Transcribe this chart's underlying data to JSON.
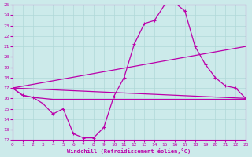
{
  "xlabel": "Windchill (Refroidissement éolien,°C)",
  "xlim": [
    0,
    23
  ],
  "ylim": [
    12,
    25
  ],
  "xticks": [
    0,
    1,
    2,
    3,
    4,
    5,
    6,
    7,
    8,
    9,
    10,
    11,
    12,
    13,
    14,
    15,
    16,
    17,
    18,
    19,
    20,
    21,
    22,
    23
  ],
  "yticks": [
    12,
    13,
    14,
    15,
    16,
    17,
    18,
    19,
    20,
    21,
    22,
    23,
    24,
    25
  ],
  "background_color": "#cceaea",
  "grid_color": "#b0d8d8",
  "line_color": "#bb00aa",
  "line1_x": [
    0,
    1,
    2,
    3,
    4,
    5,
    6,
    7,
    8,
    9,
    10,
    11,
    12,
    13,
    14,
    15,
    16,
    17,
    18,
    19,
    20,
    21,
    22,
    23
  ],
  "line1_y": [
    17.0,
    16.3,
    16.1,
    15.5,
    14.5,
    15.0,
    12.6,
    12.2,
    12.2,
    13.2,
    16.2,
    18.0,
    21.2,
    23.2,
    23.5,
    25.0,
    25.2,
    24.4,
    21.0,
    19.3,
    18.0,
    17.2,
    17.0,
    16.0
  ],
  "line2_x": [
    0,
    23
  ],
  "line2_y": [
    17.0,
    21.0
  ],
  "line3_x": [
    0,
    23
  ],
  "line3_y": [
    17.0,
    16.0
  ],
  "line4_x": [
    0,
    1,
    2,
    3,
    4,
    5,
    10,
    23
  ],
  "line4_y": [
    17.0,
    16.3,
    16.1,
    16.0,
    15.9,
    15.9,
    15.9,
    15.9
  ]
}
